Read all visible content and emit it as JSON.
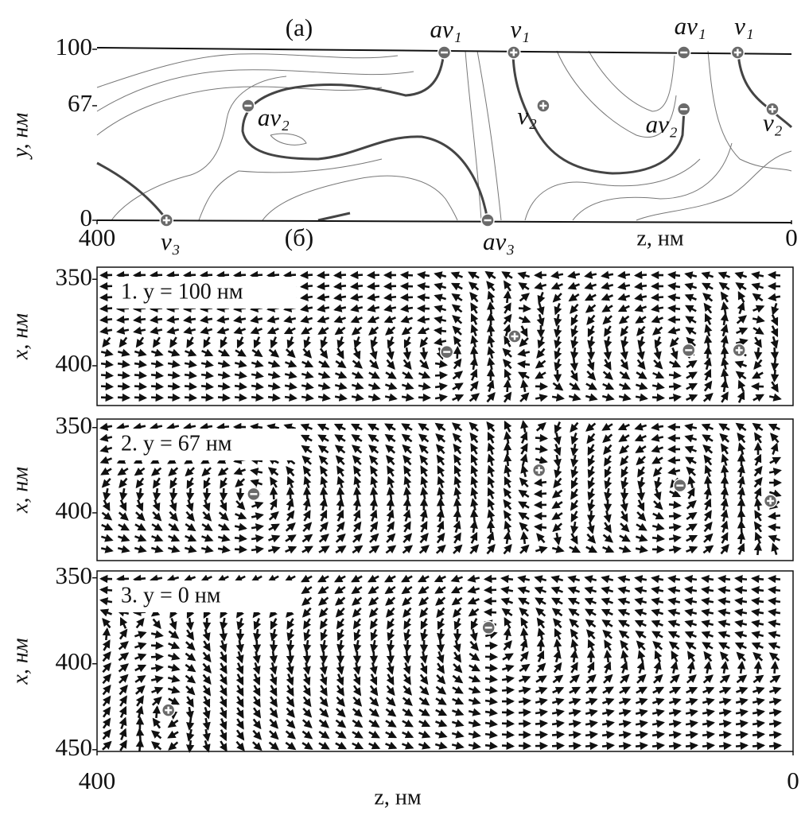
{
  "chart_data": [
    {
      "type": "contour",
      "title": "(а)",
      "xlabel": "z, нм",
      "ylabel": "y, нм",
      "xlim": [
        400,
        0
      ],
      "ylim": [
        0,
        100
      ],
      "xticks": [
        400,
        0
      ],
      "yticks": [
        0,
        67,
        100
      ],
      "vortices": {
        "z": [
          200,
          160,
          313,
          143,
          175,
          360,
          62,
          31,
          62,
          11
        ],
        "y": [
          100,
          100,
          67,
          67,
          0,
          0,
          100,
          100,
          65,
          65
        ],
        "label": [
          "av₁",
          "v₁",
          "av₂",
          "v₂",
          "av₃",
          "v₃",
          "av₁",
          "v₁",
          "av₂",
          "v₂"
        ],
        "sign": [
          "-",
          "+",
          "-",
          "+",
          "-",
          "+",
          "-",
          "+",
          "-",
          "+"
        ]
      }
    },
    {
      "type": "quiver",
      "group_label": "(б)",
      "title": "1. y = 100 нм",
      "ylabel": "x, нм",
      "xlim": [
        400,
        0
      ],
      "ylim": [
        423,
        343
      ],
      "yticks": [
        350,
        400
      ],
      "vortices": {
        "z": [
          199,
          160,
          60,
          31
        ],
        "x": [
          392,
          383,
          391,
          391
        ],
        "sign": [
          "-",
          "+",
          "-",
          "+"
        ]
      }
    },
    {
      "type": "quiver",
      "title": "2. y = 67 нм",
      "ylabel": "x, нм",
      "xlim": [
        400,
        0
      ],
      "ylim": [
        428,
        345
      ],
      "yticks": [
        350,
        400
      ],
      "vortices": {
        "z": [
          310,
          146,
          65,
          13
        ],
        "x": [
          389,
          375,
          384,
          393
        ],
        "sign": [
          "-",
          "+",
          "-",
          "+"
        ]
      }
    },
    {
      "type": "quiver",
      "title": "3. y = 0 нм",
      "ylabel": "x, нм",
      "xlabel": "z, нм",
      "xlim": [
        400,
        0
      ],
      "ylim": [
        451,
        346
      ],
      "yticks": [
        350,
        400,
        450
      ],
      "xticks": [
        400,
        0
      ],
      "vortices": {
        "z": [
          175,
          359
        ],
        "x": [
          379,
          427
        ],
        "sign": [
          "-",
          "+"
        ]
      }
    }
  ]
}
